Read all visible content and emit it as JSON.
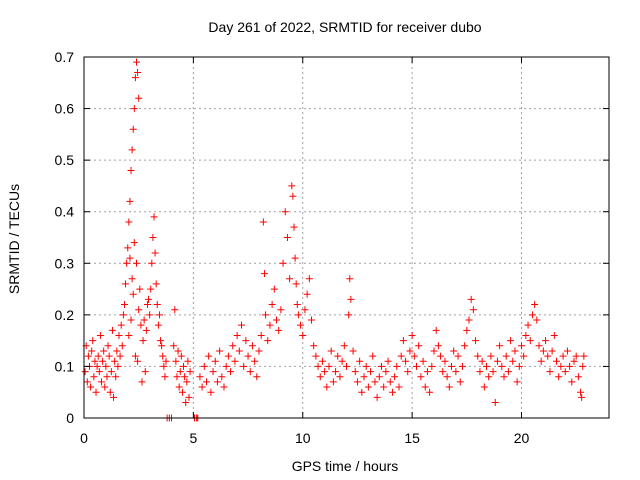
{
  "chart_data": {
    "type": "scatter",
    "title": "Day 261 of 2022, SRMTID for receiver dubo",
    "xlabel": "GPS time / hours",
    "ylabel": "SRMTID / TECUs",
    "xlim": [
      0,
      24
    ],
    "ylim": [
      0,
      0.7
    ],
    "x_ticks": [
      "0",
      "5",
      "10",
      "15",
      "20"
    ],
    "y_ticks": [
      "0",
      "0.1",
      "0.2",
      "0.3",
      "0.4",
      "0.5",
      "0.6",
      "0.7"
    ],
    "grid": true,
    "marker": "plus",
    "series_color": "#ff0000",
    "series": [
      {
        "name": "SRMTID",
        "points": [
          [
            0.05,
            0.09
          ],
          [
            0.1,
            0.14
          ],
          [
            0.15,
            0.07
          ],
          [
            0.2,
            0.12
          ],
          [
            0.25,
            0.1
          ],
          [
            0.3,
            0.06
          ],
          [
            0.35,
            0.13
          ],
          [
            0.4,
            0.15
          ],
          [
            0.45,
            0.08
          ],
          [
            0.5,
            0.11
          ],
          [
            0.55,
            0.05
          ],
          [
            0.6,
            0.1
          ],
          [
            0.65,
            0.12
          ],
          [
            0.7,
            0.09
          ],
          [
            0.75,
            0.16
          ],
          [
            0.8,
            0.07
          ],
          [
            0.85,
            0.11
          ],
          [
            0.9,
            0.13
          ],
          [
            0.95,
            0.06
          ],
          [
            1.0,
            0.1
          ],
          [
            1.05,
            0.08
          ],
          [
            1.1,
            0.14
          ],
          [
            1.15,
            0.12
          ],
          [
            1.2,
            0.05
          ],
          [
            1.25,
            0.09
          ],
          [
            1.3,
            0.17
          ],
          [
            1.35,
            0.04
          ],
          [
            1.4,
            0.11
          ],
          [
            1.45,
            0.08
          ],
          [
            1.5,
            0.13
          ],
          [
            1.55,
            0.1
          ],
          [
            1.6,
            0.16
          ],
          [
            1.65,
            0.12
          ],
          [
            1.7,
            0.18
          ],
          [
            1.75,
            0.14
          ],
          [
            1.8,
            0.2
          ],
          [
            1.85,
            0.22
          ],
          [
            1.9,
            0.26
          ],
          [
            1.95,
            0.3
          ],
          [
            2.0,
            0.33
          ],
          [
            2.05,
            0.38
          ],
          [
            2.1,
            0.42
          ],
          [
            2.15,
            0.48
          ],
          [
            2.2,
            0.52
          ],
          [
            2.25,
            0.56
          ],
          [
            2.3,
            0.6
          ],
          [
            2.35,
            0.66
          ],
          [
            2.4,
            0.69
          ],
          [
            2.45,
            0.67
          ],
          [
            2.5,
            0.62
          ],
          [
            2.1,
            0.31
          ],
          [
            2.2,
            0.27
          ],
          [
            2.3,
            0.34
          ],
          [
            2.4,
            0.3
          ],
          [
            2.5,
            0.21
          ],
          [
            2.6,
            0.18
          ],
          [
            2.7,
            0.15
          ],
          [
            2.8,
            0.09
          ],
          [
            2.9,
            0.22
          ],
          [
            3.0,
            0.2
          ],
          [
            2.05,
            0.16
          ],
          [
            2.15,
            0.19
          ],
          [
            2.25,
            0.24
          ],
          [
            2.35,
            0.12
          ],
          [
            2.45,
            0.11
          ],
          [
            2.55,
            0.25
          ],
          [
            2.65,
            0.07
          ],
          [
            2.75,
            0.19
          ],
          [
            2.85,
            0.17
          ],
          [
            2.95,
            0.23
          ],
          [
            3.05,
            0.25
          ],
          [
            3.1,
            0.3
          ],
          [
            3.15,
            0.35
          ],
          [
            3.2,
            0.39
          ],
          [
            3.25,
            0.32
          ],
          [
            3.3,
            0.26
          ],
          [
            3.35,
            0.22
          ],
          [
            3.4,
            0.18
          ],
          [
            3.45,
            0.2
          ],
          [
            3.5,
            0.15
          ],
          [
            3.55,
            0.14
          ],
          [
            3.6,
            0.12
          ],
          [
            3.65,
            0.1
          ],
          [
            3.7,
            0.08
          ],
          [
            3.75,
            0.11
          ],
          [
            3.8,
            0.0
          ],
          [
            3.9,
            0.0
          ],
          [
            4.0,
            0.0
          ],
          [
            4.1,
            0.14
          ],
          [
            4.15,
            0.21
          ],
          [
            4.2,
            0.11
          ],
          [
            4.25,
            0.08
          ],
          [
            4.3,
            0.13
          ],
          [
            4.35,
            0.06
          ],
          [
            4.4,
            0.09
          ],
          [
            4.45,
            0.12
          ],
          [
            4.5,
            0.05
          ],
          [
            4.55,
            0.1
          ],
          [
            4.6,
            0.08
          ],
          [
            4.65,
            0.03
          ],
          [
            4.7,
            0.07
          ],
          [
            4.75,
            0.11
          ],
          [
            4.8,
            0.04
          ],
          [
            4.85,
            0.09
          ],
          [
            5.05,
            0.0
          ],
          [
            5.15,
            0.0
          ],
          [
            5.2,
            0.0
          ],
          [
            5.3,
            0.08
          ],
          [
            5.4,
            0.06
          ],
          [
            5.5,
            0.1
          ],
          [
            5.6,
            0.07
          ],
          [
            5.7,
            0.12
          ],
          [
            5.8,
            0.05
          ],
          [
            5.9,
            0.09
          ],
          [
            6.0,
            0.11
          ],
          [
            6.1,
            0.07
          ],
          [
            6.2,
            0.13
          ],
          [
            6.3,
            0.08
          ],
          [
            6.4,
            0.06
          ],
          [
            6.5,
            0.1
          ],
          [
            6.6,
            0.12
          ],
          [
            6.7,
            0.09
          ],
          [
            6.8,
            0.14
          ],
          [
            6.9,
            0.11
          ],
          [
            7.0,
            0.16
          ],
          [
            7.1,
            0.13
          ],
          [
            7.2,
            0.18
          ],
          [
            7.3,
            0.1
          ],
          [
            7.4,
            0.15
          ],
          [
            7.5,
            0.12
          ],
          [
            7.6,
            0.09
          ],
          [
            7.7,
            0.14
          ],
          [
            7.8,
            0.11
          ],
          [
            7.9,
            0.08
          ],
          [
            8.0,
            0.13
          ],
          [
            8.1,
            0.16
          ],
          [
            8.2,
            0.38
          ],
          [
            8.25,
            0.28
          ],
          [
            8.3,
            0.2
          ],
          [
            8.4,
            0.15
          ],
          [
            8.5,
            0.18
          ],
          [
            8.6,
            0.22
          ],
          [
            8.7,
            0.25
          ],
          [
            8.8,
            0.19
          ],
          [
            8.9,
            0.17
          ],
          [
            9.0,
            0.21
          ],
          [
            9.1,
            0.3
          ],
          [
            9.2,
            0.4
          ],
          [
            9.3,
            0.35
          ],
          [
            9.4,
            0.27
          ],
          [
            9.5,
            0.45
          ],
          [
            9.55,
            0.43
          ],
          [
            9.6,
            0.37
          ],
          [
            9.65,
            0.31
          ],
          [
            9.7,
            0.26
          ],
          [
            9.75,
            0.22
          ],
          [
            9.8,
            0.2
          ],
          [
            9.9,
            0.18
          ],
          [
            10.0,
            0.16
          ],
          [
            10.1,
            0.21
          ],
          [
            10.2,
            0.24
          ],
          [
            10.3,
            0.27
          ],
          [
            10.4,
            0.19
          ],
          [
            10.5,
            0.14
          ],
          [
            10.6,
            0.12
          ],
          [
            10.7,
            0.1
          ],
          [
            10.8,
            0.08
          ],
          [
            10.9,
            0.11
          ],
          [
            11.0,
            0.09
          ],
          [
            11.1,
            0.06
          ],
          [
            11.2,
            0.1
          ],
          [
            11.3,
            0.13
          ],
          [
            11.4,
            0.07
          ],
          [
            11.5,
            0.09
          ],
          [
            11.6,
            0.12
          ],
          [
            11.7,
            0.08
          ],
          [
            11.8,
            0.11
          ],
          [
            11.9,
            0.14
          ],
          [
            12.0,
            0.1
          ],
          [
            12.1,
            0.2
          ],
          [
            12.15,
            0.27
          ],
          [
            12.2,
            0.23
          ],
          [
            12.3,
            0.13
          ],
          [
            12.4,
            0.09
          ],
          [
            12.5,
            0.07
          ],
          [
            12.6,
            0.11
          ],
          [
            12.7,
            0.05
          ],
          [
            12.8,
            0.08
          ],
          [
            12.9,
            0.1
          ],
          [
            13.0,
            0.06
          ],
          [
            13.1,
            0.09
          ],
          [
            13.2,
            0.12
          ],
          [
            13.3,
            0.07
          ],
          [
            13.4,
            0.04
          ],
          [
            13.5,
            0.08
          ],
          [
            13.6,
            0.1
          ],
          [
            13.7,
            0.06
          ],
          [
            13.8,
            0.09
          ],
          [
            13.9,
            0.11
          ],
          [
            14.0,
            0.07
          ],
          [
            14.1,
            0.05
          ],
          [
            14.2,
            0.08
          ],
          [
            14.3,
            0.1
          ],
          [
            14.4,
            0.06
          ],
          [
            14.5,
            0.12
          ],
          [
            14.6,
            0.15
          ],
          [
            14.7,
            0.11
          ],
          [
            14.8,
            0.09
          ],
          [
            14.9,
            0.13
          ],
          [
            15.0,
            0.16
          ],
          [
            15.1,
            0.12
          ],
          [
            15.2,
            0.1
          ],
          [
            15.3,
            0.14
          ],
          [
            15.4,
            0.08
          ],
          [
            15.5,
            0.11
          ],
          [
            15.6,
            0.06
          ],
          [
            15.7,
            0.09
          ],
          [
            15.8,
            0.05
          ],
          [
            15.9,
            0.1
          ],
          [
            16.0,
            0.13
          ],
          [
            16.1,
            0.17
          ],
          [
            16.2,
            0.14
          ],
          [
            16.3,
            0.12
          ],
          [
            16.4,
            0.09
          ],
          [
            16.5,
            0.11
          ],
          [
            16.6,
            0.08
          ],
          [
            16.7,
            0.06
          ],
          [
            16.8,
            0.1
          ],
          [
            16.9,
            0.13
          ],
          [
            17.0,
            0.09
          ],
          [
            17.1,
            0.12
          ],
          [
            17.2,
            0.07
          ],
          [
            17.3,
            0.1
          ],
          [
            17.4,
            0.14
          ],
          [
            17.5,
            0.17
          ],
          [
            17.6,
            0.19
          ],
          [
            17.7,
            0.23
          ],
          [
            17.8,
            0.21
          ],
          [
            17.9,
            0.15
          ],
          [
            18.0,
            0.12
          ],
          [
            18.1,
            0.09
          ],
          [
            18.2,
            0.11
          ],
          [
            18.3,
            0.06
          ],
          [
            18.4,
            0.1
          ],
          [
            18.5,
            0.08
          ],
          [
            18.6,
            0.12
          ],
          [
            18.7,
            0.09
          ],
          [
            18.8,
            0.03
          ],
          [
            18.9,
            0.11
          ],
          [
            19.0,
            0.14
          ],
          [
            19.1,
            0.1
          ],
          [
            19.2,
            0.08
          ],
          [
            19.3,
            0.12
          ],
          [
            19.4,
            0.09
          ],
          [
            19.5,
            0.15
          ],
          [
            19.6,
            0.11
          ],
          [
            19.7,
            0.13
          ],
          [
            19.8,
            0.07
          ],
          [
            19.9,
            0.1
          ],
          [
            20.0,
            0.14
          ],
          [
            20.1,
            0.12
          ],
          [
            20.2,
            0.16
          ],
          [
            20.3,
            0.18
          ],
          [
            20.4,
            0.15
          ],
          [
            20.5,
            0.2
          ],
          [
            20.6,
            0.22
          ],
          [
            20.7,
            0.19
          ],
          [
            20.8,
            0.14
          ],
          [
            20.9,
            0.11
          ],
          [
            21.0,
            0.13
          ],
          [
            21.1,
            0.15
          ],
          [
            21.2,
            0.12
          ],
          [
            21.3,
            0.09
          ],
          [
            21.4,
            0.13
          ],
          [
            21.5,
            0.16
          ],
          [
            21.6,
            0.11
          ],
          [
            21.7,
            0.08
          ],
          [
            21.8,
            0.1
          ],
          [
            21.9,
            0.12
          ],
          [
            22.0,
            0.09
          ],
          [
            22.1,
            0.13
          ],
          [
            22.2,
            0.1
          ],
          [
            22.3,
            0.07
          ],
          [
            22.4,
            0.11
          ],
          [
            22.5,
            0.12
          ],
          [
            22.6,
            0.08
          ],
          [
            22.7,
            0.05
          ],
          [
            22.75,
            0.04
          ],
          [
            22.8,
            0.1
          ],
          [
            22.85,
            0.12
          ]
        ]
      }
    ]
  }
}
